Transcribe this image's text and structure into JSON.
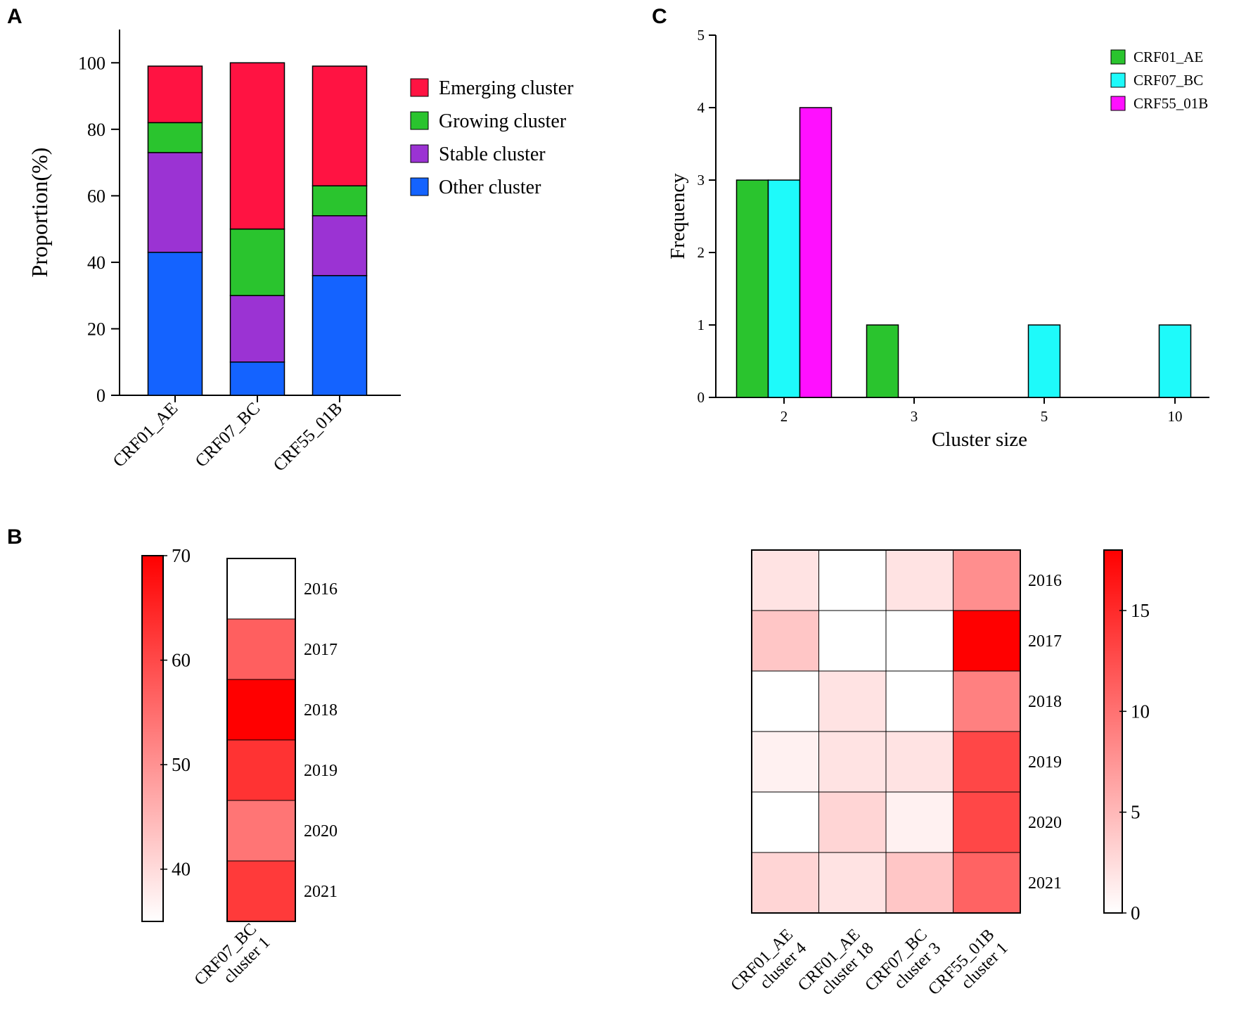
{
  "panels": {
    "a": "A",
    "b": "B",
    "c": "C"
  },
  "colors": {
    "emerging": "#FF1342",
    "growing": "#2AC42E",
    "stable": "#9B33D3",
    "other": "#1463FF",
    "crf01": "#2AC42E",
    "crf07": "#1EFAFA",
    "crf55": "#FF10FF",
    "heat_high": "#FF0000",
    "heat_low": "#FFFFFF"
  },
  "chart_data": [
    {
      "id": "A",
      "type": "bar",
      "stacked": true,
      "title": "",
      "xlabel": "",
      "ylabel": "Proportion(%)",
      "ylim": [
        0,
        110
      ],
      "yticks": [
        0,
        20,
        40,
        60,
        80,
        100
      ],
      "categories": [
        "CRF01_AE",
        "CRF07_BC",
        "CRF55_01B"
      ],
      "series": [
        {
          "name": "Other cluster",
          "key": "other",
          "values": [
            43,
            10,
            36
          ]
        },
        {
          "name": "Stable cluster",
          "key": "stable",
          "values": [
            30,
            20,
            18
          ]
        },
        {
          "name": "Growing cluster",
          "key": "growing",
          "values": [
            9,
            20,
            9
          ]
        },
        {
          "name": "Emerging cluster",
          "key": "emerging",
          "values": [
            17,
            50,
            36
          ]
        }
      ],
      "legend": [
        "Emerging cluster",
        "Growing cluster",
        "Stable cluster",
        "Other cluster"
      ],
      "legend_position": "right"
    },
    {
      "id": "C",
      "type": "bar",
      "title": "",
      "xlabel": "Cluster size",
      "ylabel": "Frequency",
      "ylim": [
        0,
        5
      ],
      "yticks": [
        0,
        1,
        2,
        3,
        4,
        5
      ],
      "categories": [
        "2",
        "3",
        "5",
        "10"
      ],
      "series": [
        {
          "name": "CRF01_AE",
          "key": "crf01",
          "values": [
            3,
            1,
            0,
            0
          ]
        },
        {
          "name": "CRF07_BC",
          "key": "crf07",
          "values": [
            3,
            0,
            1,
            1
          ]
        },
        {
          "name": "CRF55_01B",
          "key": "crf55",
          "values": [
            4,
            0,
            0,
            0
          ]
        }
      ],
      "legend_position": "top-right"
    },
    {
      "id": "B1",
      "type": "heatmap",
      "title": "",
      "columns": [
        "CRF07_BC\ncluster 1"
      ],
      "rows": [
        "2016",
        "2017",
        "2018",
        "2019",
        "2020",
        "2021"
      ],
      "values": [
        [
          35
        ],
        [
          57
        ],
        [
          70
        ],
        [
          63
        ],
        [
          54
        ],
        [
          62
        ]
      ],
      "colorbar": {
        "range": [
          35,
          70
        ],
        "ticks": [
          40,
          50,
          60,
          70
        ]
      }
    },
    {
      "id": "B2",
      "type": "heatmap",
      "title": "",
      "columns": [
        "CRF01_AE\ncluster 4",
        "CRF01_AE\ncluster 18",
        "CRF07_BC\ncluster 3",
        "CRF55_01B\ncluster 1"
      ],
      "rows": [
        "2016",
        "2017",
        "2018",
        "2019",
        "2020",
        "2021"
      ],
      "values": [
        [
          2,
          0,
          2,
          8
        ],
        [
          4,
          0,
          0,
          18
        ],
        [
          0,
          2,
          0,
          9
        ],
        [
          1,
          2,
          2,
          13
        ],
        [
          0,
          3,
          1,
          13
        ],
        [
          3,
          2,
          4,
          11
        ]
      ],
      "colorbar": {
        "range": [
          0,
          18
        ],
        "ticks": [
          0,
          5,
          10,
          15
        ]
      }
    }
  ]
}
